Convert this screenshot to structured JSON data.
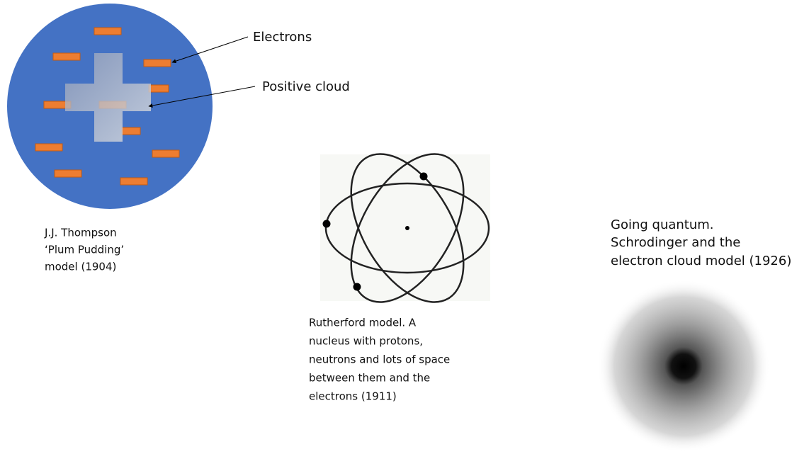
{
  "labels": {
    "electrons": "Electrons",
    "positive_cloud": "Positive cloud"
  },
  "thompson": {
    "lines": [
      "J.J. Thompson",
      "‘Plum Pudding’",
      "model (1904)"
    ]
  },
  "rutherford": {
    "lines": [
      "Rutherford model. A",
      "nucleus with protons,",
      "neutrons and lots of space",
      "between them and the",
      "electrons (1911)"
    ]
  },
  "quantum": {
    "lines": [
      "Going quantum.",
      "Schrodinger and the",
      "electron cloud model (1926)"
    ]
  }
}
